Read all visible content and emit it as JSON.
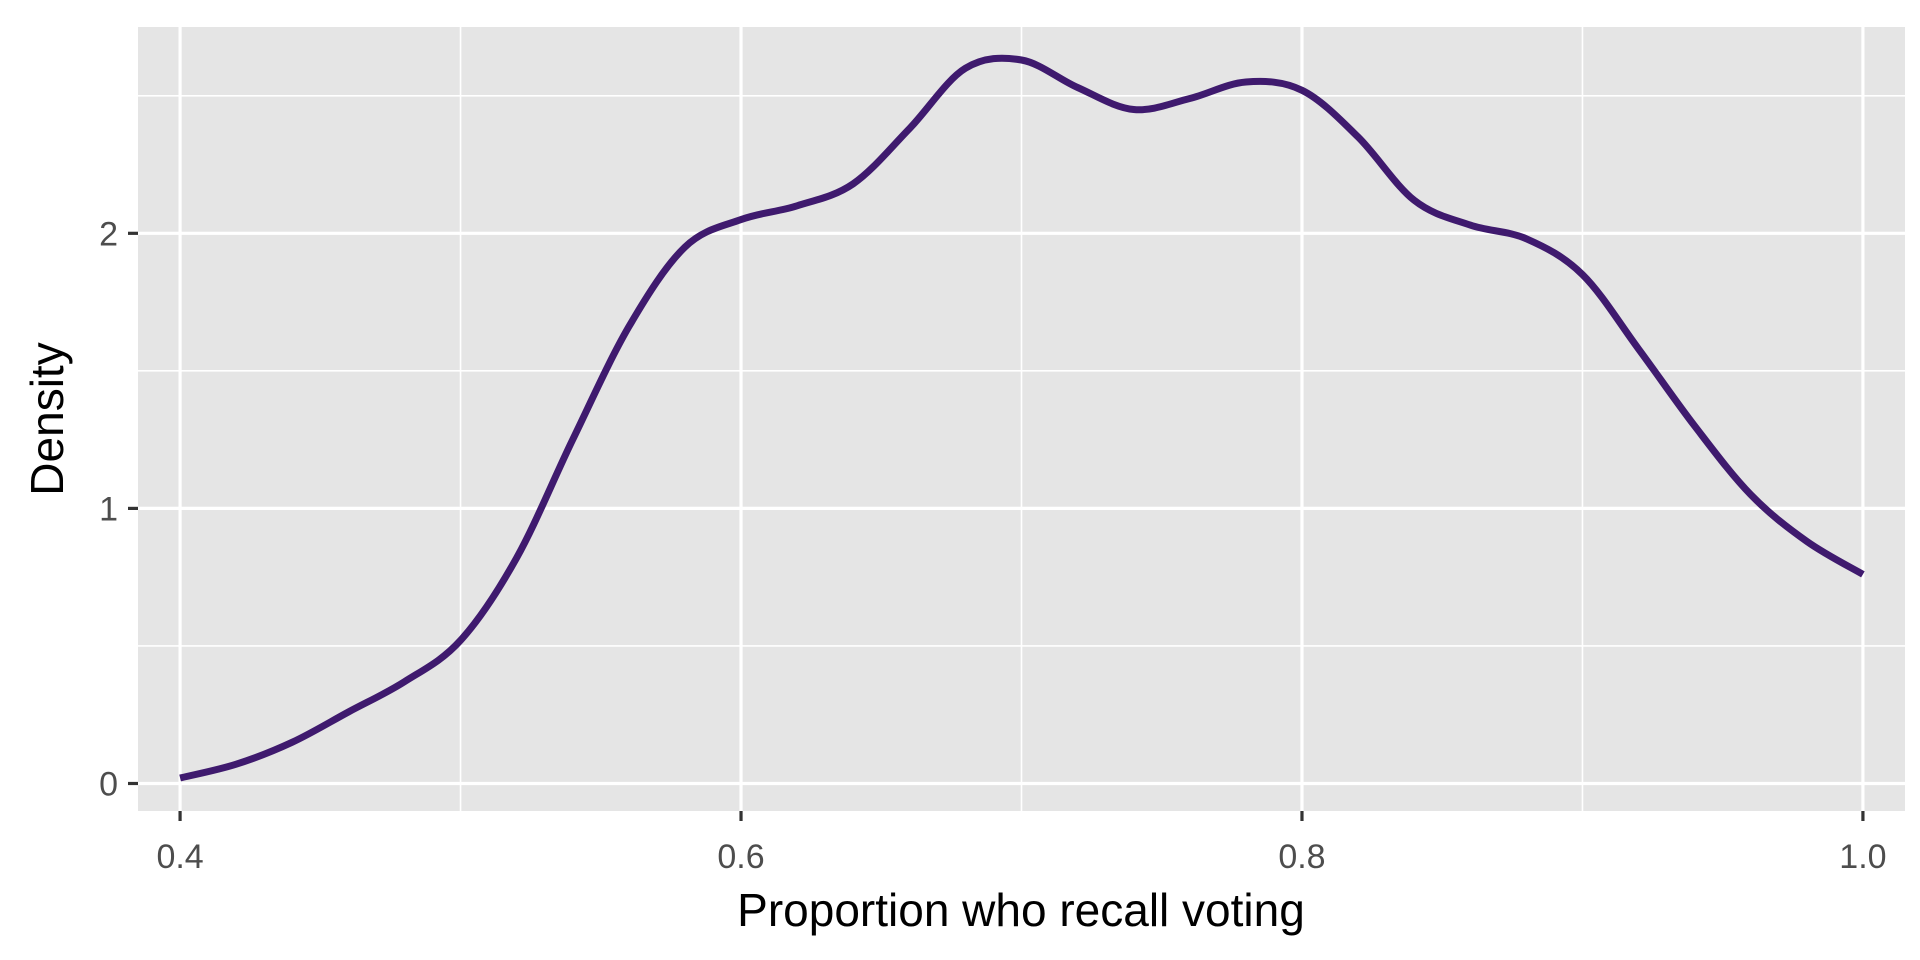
{
  "chart_data": {
    "type": "line",
    "subtype": "density",
    "title": "",
    "xlabel": "Proportion who recall voting",
    "ylabel": "Density",
    "xlim": [
      0.385,
      1.015
    ],
    "ylim": [
      -0.1,
      2.75
    ],
    "x_ticks": [
      0.4,
      0.6,
      0.8,
      1.0
    ],
    "x_tick_labels": [
      "0.4",
      "0.6",
      "0.8",
      "1.0"
    ],
    "x_minor": [
      0.5,
      0.7,
      0.9
    ],
    "y_ticks": [
      0,
      1,
      2
    ],
    "y_tick_labels": [
      "0",
      "1",
      "2"
    ],
    "y_minor": [
      0.5,
      1.5,
      2.5
    ],
    "grid": true,
    "legend": "none",
    "colors": {
      "panel": "#e5e5e5",
      "grid": "#ffffff",
      "line": "#3f1a6e"
    },
    "series": [
      {
        "x": [
          0.4,
          0.42,
          0.44,
          0.46,
          0.48,
          0.5,
          0.52,
          0.54,
          0.56,
          0.58,
          0.6,
          0.62,
          0.64,
          0.66,
          0.68,
          0.7,
          0.72,
          0.74,
          0.76,
          0.78,
          0.8,
          0.82,
          0.84,
          0.86,
          0.88,
          0.9,
          0.92,
          0.94,
          0.96,
          0.98,
          1.0
        ],
        "y": [
          0.02,
          0.07,
          0.15,
          0.26,
          0.37,
          0.52,
          0.82,
          1.25,
          1.66,
          1.95,
          2.05,
          2.1,
          2.18,
          2.38,
          2.6,
          2.63,
          2.53,
          2.45,
          2.49,
          2.55,
          2.52,
          2.35,
          2.12,
          2.03,
          1.98,
          1.85,
          1.58,
          1.3,
          1.05,
          0.88,
          0.76
        ]
      }
    ]
  }
}
